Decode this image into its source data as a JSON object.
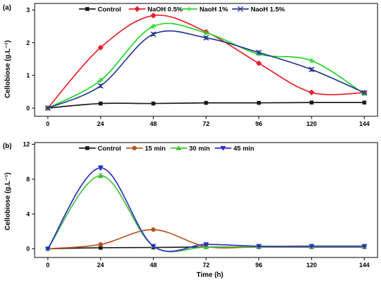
{
  "chart_data": [
    {
      "type": "line",
      "panel_label": "(a)",
      "ylabel": "Cellobiose (g.L⁻¹)",
      "xlabel": "",
      "x": [
        0,
        24,
        48,
        72,
        96,
        120,
        144
      ],
      "x_ticks": [
        "0",
        "24",
        "48",
        "72",
        "96",
        "120",
        "144"
      ],
      "y_ticks": [
        "0",
        "1",
        "2",
        "3"
      ],
      "xlim": [
        -6,
        150
      ],
      "ylim": [
        -0.25,
        3.2
      ],
      "legend_position": "top",
      "series": [
        {
          "name": "Control",
          "color": "#1a1a1a",
          "marker": "square",
          "values": [
            0.0,
            0.14,
            0.14,
            0.16,
            0.16,
            0.17,
            0.17
          ],
          "errors": [
            0.02,
            0.03,
            0.02,
            0.02,
            0.02,
            0.02,
            0.02
          ]
        },
        {
          "name": "NaOH 0.5%",
          "color": "#e8202a",
          "marker": "diamond",
          "values": [
            0.0,
            1.85,
            2.83,
            2.33,
            1.37,
            0.48,
            0.47
          ],
          "errors": [
            0.03,
            0.05,
            0.05,
            0.05,
            0.04,
            0.03,
            0.03
          ]
        },
        {
          "name": "NaoH 1%",
          "color": "#22d82a",
          "marker": "dash",
          "values": [
            0.0,
            0.85,
            2.5,
            2.3,
            1.65,
            1.45,
            0.43
          ],
          "errors": [
            0.03,
            0.05,
            0.05,
            0.05,
            0.05,
            0.05,
            0.03
          ]
        },
        {
          "name": "NaoH 1.5%",
          "color": "#26378f",
          "marker": "cross",
          "values": [
            0.0,
            0.68,
            2.26,
            2.15,
            1.7,
            1.18,
            0.47
          ],
          "errors": [
            0.03,
            0.05,
            0.05,
            0.05,
            0.05,
            0.05,
            0.03
          ]
        }
      ]
    },
    {
      "type": "line",
      "panel_label": "(b)",
      "ylabel": "Cellobiose (g.L⁻¹)",
      "xlabel": "Time (h)",
      "x": [
        0,
        24,
        48,
        72,
        96,
        120,
        144
      ],
      "x_ticks": [
        "0",
        "24",
        "48",
        "72",
        "96",
        "120",
        "144"
      ],
      "y_ticks": [
        "0",
        "4",
        "8",
        "12"
      ],
      "xlim": [
        -6,
        150
      ],
      "ylim": [
        -1,
        12.2
      ],
      "legend_position": "top",
      "series": [
        {
          "name": "Control",
          "color": "#1a1a1a",
          "marker": "square",
          "values": [
            0.0,
            0.12,
            0.15,
            0.2,
            0.2,
            0.2,
            0.2
          ],
          "errors": [
            0.05,
            0.05,
            0.05,
            0.05,
            0.05,
            0.05,
            0.05
          ]
        },
        {
          "name": "15 min",
          "color": "#b8531f",
          "marker": "circle",
          "values": [
            0.0,
            0.5,
            2.2,
            0.25,
            0.22,
            0.25,
            0.25
          ],
          "errors": [
            0.05,
            0.1,
            0.15,
            0.1,
            0.05,
            0.05,
            0.05
          ]
        },
        {
          "name": "30 min",
          "color": "#3fc23a",
          "marker": "triangle",
          "values": [
            0.0,
            8.4,
            0.3,
            0.2,
            0.25,
            0.25,
            0.25
          ],
          "errors": [
            0.05,
            0.25,
            0.1,
            0.05,
            0.05,
            0.05,
            0.05
          ]
        },
        {
          "name": "45 min",
          "color": "#2b2fc2",
          "marker": "triangle-down",
          "values": [
            0.0,
            9.3,
            0.3,
            0.5,
            0.3,
            0.3,
            0.3
          ],
          "errors": [
            0.05,
            0.25,
            0.1,
            0.1,
            0.05,
            0.05,
            0.05
          ]
        }
      ]
    }
  ]
}
